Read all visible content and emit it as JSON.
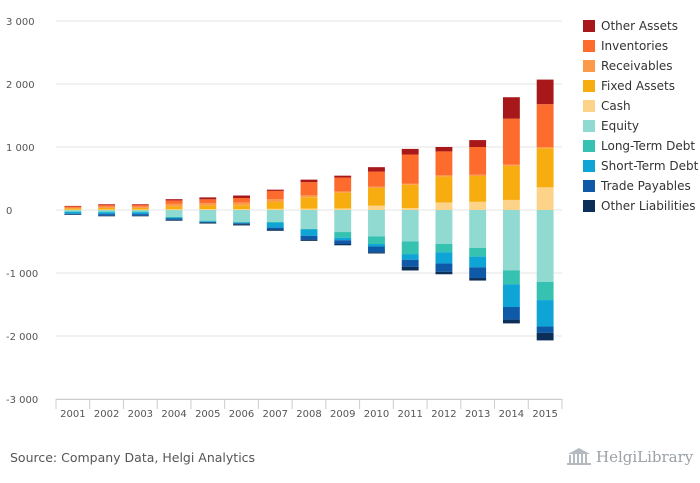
{
  "chart_data": {
    "type": "bar",
    "stacked": true,
    "title": "",
    "xlabel": "",
    "ylabel": "",
    "ylim": [
      -3000,
      3000
    ],
    "y_ticks": [
      3000,
      2000,
      1000,
      0,
      -1000,
      -2000,
      -3000
    ],
    "y_tick_labels": [
      "3 000",
      "2 000",
      "1 000",
      "0",
      "-1 000",
      "-2 000",
      "-3 000"
    ],
    "grid": "horizontal",
    "legend_position": "right",
    "categories": [
      "2001",
      "2002",
      "2003",
      "2004",
      "2005",
      "2006",
      "2007",
      "2008",
      "2009",
      "2010",
      "2011",
      "2012",
      "2013",
      "2014",
      "2015"
    ],
    "series": [
      {
        "name": "Cash",
        "side": "asset",
        "color": "#fdd38a",
        "values": [
          5,
          8,
          8,
          12,
          15,
          15,
          18,
          22,
          25,
          70,
          30,
          120,
          130,
          160,
          360
        ]
      },
      {
        "name": "Fixed Assets",
        "side": "asset",
        "color": "#f7ad0f",
        "values": [
          20,
          25,
          25,
          45,
          55,
          60,
          110,
          180,
          250,
          280,
          370,
          410,
          410,
          540,
          620
        ]
      },
      {
        "name": "Receivables",
        "side": "asset",
        "color": "#fb9a49",
        "values": [
          15,
          20,
          20,
          40,
          40,
          45,
          45,
          30,
          20,
          20,
          20,
          20,
          20,
          20,
          20
        ]
      },
      {
        "name": "Inventories",
        "side": "asset",
        "color": "#fd6b2d",
        "values": [
          20,
          30,
          30,
          55,
          60,
          70,
          130,
          210,
          220,
          240,
          460,
          380,
          440,
          730,
          680
        ]
      },
      {
        "name": "Other Assets",
        "side": "asset",
        "color": "#a8181b",
        "values": [
          5,
          10,
          10,
          20,
          30,
          40,
          20,
          40,
          30,
          70,
          90,
          70,
          110,
          340,
          390
        ]
      },
      {
        "name": "Equity",
        "side": "liability",
        "color": "#91dad2",
        "values": [
          20,
          25,
          25,
          110,
          170,
          190,
          190,
          300,
          350,
          420,
          500,
          540,
          600,
          960,
          1140
        ]
      },
      {
        "name": "Long-Term Debt",
        "side": "liability",
        "color": "#35c2b0",
        "values": [
          10,
          10,
          10,
          10,
          10,
          10,
          10,
          10,
          90,
          120,
          200,
          130,
          140,
          220,
          290
        ]
      },
      {
        "name": "Short-Term Debt",
        "side": "liability",
        "color": "#0ea4d6",
        "values": [
          30,
          30,
          30,
          15,
          10,
          10,
          80,
          100,
          40,
          40,
          90,
          180,
          170,
          360,
          420
        ]
      },
      {
        "name": "Trade Payables",
        "side": "liability",
        "color": "#0f5aa8",
        "values": [
          10,
          25,
          25,
          20,
          10,
          15,
          30,
          60,
          60,
          90,
          110,
          130,
          170,
          200,
          100
        ]
      },
      {
        "name": "Other Liabilities",
        "side": "liability",
        "color": "#0b2f58",
        "values": [
          5,
          10,
          10,
          15,
          15,
          20,
          20,
          20,
          20,
          20,
          60,
          40,
          40,
          60,
          120
        ]
      }
    ],
    "legend_order": [
      "Other Assets",
      "Inventories",
      "Receivables",
      "Fixed Assets",
      "Cash",
      "Equity",
      "Long-Term Debt",
      "Short-Term Debt",
      "Trade Payables",
      "Other Liabilities"
    ]
  },
  "footer": {
    "source": "Source: Company Data, Helgi Analytics",
    "brand": "HelgiLibrary",
    "brand_icon": "library-building-icon"
  }
}
